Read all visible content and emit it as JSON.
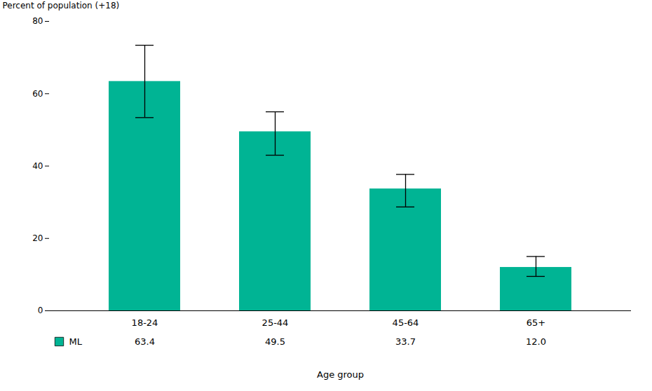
{
  "chart_data": {
    "type": "bar",
    "categories": [
      "18-24",
      "25-44",
      "45-64",
      "65+"
    ],
    "series": [
      {
        "name": "ML",
        "color": "#00B494",
        "values": [
          63.4,
          49.5,
          33.7,
          12.0
        ],
        "errors_lower": [
          10.0,
          6.5,
          5.0,
          2.5
        ],
        "errors_upper": [
          10.0,
          5.5,
          4.0,
          3.0
        ],
        "value_labels": [
          "63.4",
          "49.5",
          "33.7",
          "12.0"
        ]
      }
    ],
    "ylabel": "Percent of population (+18)",
    "xlabel": "Age group",
    "ylim": [
      0,
      80
    ],
    "yticks": [
      0,
      20,
      40,
      60,
      80
    ],
    "data_labels": true,
    "legend": "lower left",
    "grid": false
  }
}
